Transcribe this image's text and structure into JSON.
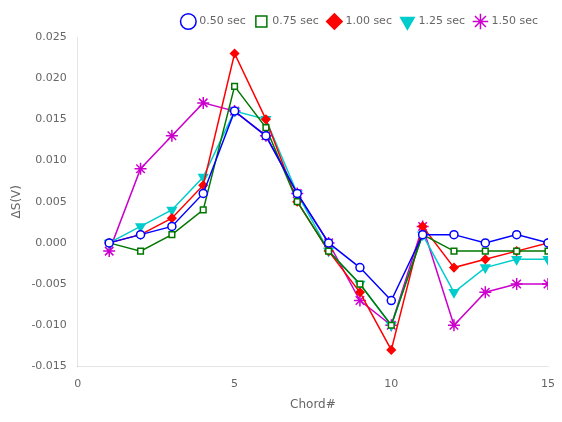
{
  "chart_data": {
    "type": "line",
    "xlabel": "Chord#",
    "ylabel": "ΔS(V)",
    "x": [
      1,
      2,
      3,
      4,
      5,
      6,
      7,
      8,
      9,
      10,
      11,
      12,
      13,
      14,
      15
    ],
    "xlim": [
      0,
      15
    ],
    "xticks": [
      0,
      5,
      10,
      15
    ],
    "ylim": [
      -0.015,
      0.025
    ],
    "yticks": [
      -0.015,
      {
        "value": -0.01,
        "label": "-0.010"
      },
      -0.005,
      {
        "value": 0.0,
        "label": "0.000"
      },
      0.005,
      {
        "value": 0.01,
        "label": "0.010"
      },
      0.015,
      {
        "value": 0.02,
        "label": "0.020"
      },
      0.025
    ],
    "grid": false,
    "legend": "upper right",
    "series": [
      {
        "name": "0.50 sec",
        "color": "#0000FF",
        "marker": "circle",
        "values": [
          0.0,
          0.001,
          0.002,
          0.006,
          0.016,
          0.013,
          0.006,
          0.0,
          -0.003,
          -0.007,
          0.001,
          0.001,
          0.0,
          0.001,
          0.0
        ]
      },
      {
        "name": "0.75 sec",
        "color": "#007700",
        "marker": "square",
        "values": [
          0.0,
          -0.001,
          0.001,
          0.004,
          0.019,
          0.014,
          0.005,
          -0.001,
          -0.005,
          -0.01,
          0.001,
          -0.001,
          -0.001,
          -0.001,
          -0.001
        ]
      },
      {
        "name": "1.00 sec",
        "color": "#FF0000",
        "marker": "diamond",
        "values": [
          0.0,
          0.001,
          0.003,
          0.007,
          0.023,
          0.015,
          0.005,
          -0.001,
          -0.006,
          -0.013,
          0.002,
          -0.003,
          -0.002,
          -0.001,
          0.0
        ]
      },
      {
        "name": "1.25 sec",
        "color": "#00CCCC",
        "marker": "triangle_down",
        "values": [
          0.0,
          0.002,
          0.004,
          0.008,
          0.016,
          0.015,
          0.006,
          -0.001,
          -0.005,
          -0.01,
          0.001,
          -0.006,
          -0.003,
          -0.002,
          -0.002
        ]
      },
      {
        "name": "1.50 sec",
        "color": "#CC00CC",
        "marker": "star",
        "values": [
          -0.001,
          0.009,
          0.013,
          0.017,
          0.016,
          0.013,
          0.006,
          0.0,
          -0.007,
          -0.01,
          0.002,
          -0.01,
          -0.006,
          -0.005,
          -0.005
        ]
      }
    ]
  }
}
